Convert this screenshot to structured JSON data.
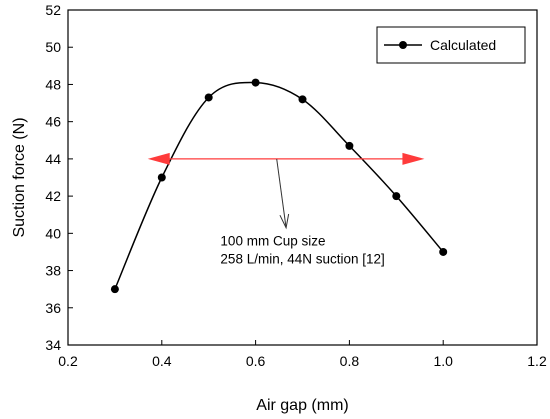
{
  "chart_data": {
    "type": "line",
    "xlabel": "Air gap (mm)",
    "ylabel": "Suction force (N)",
    "xlim": [
      0.2,
      1.2
    ],
    "ylim": [
      34,
      52
    ],
    "xticks": [
      0.2,
      0.4,
      0.6,
      0.8,
      1.0,
      1.2
    ],
    "xtick_labels": [
      "0.2",
      "0.4",
      "0.6",
      "0.8",
      "1.0",
      "1.2"
    ],
    "yticks": [
      34,
      36,
      38,
      40,
      42,
      44,
      46,
      48,
      50,
      52
    ],
    "ytick_labels": [
      "34",
      "36",
      "38",
      "40",
      "42",
      "44",
      "46",
      "48",
      "50",
      "52"
    ],
    "grid": false,
    "legend_position": "top-right",
    "series": [
      {
        "name": "Calculated",
        "x": [
          0.3,
          0.4,
          0.5,
          0.6,
          0.7,
          0.8,
          0.9,
          1.0
        ],
        "y": [
          37.0,
          43.0,
          47.3,
          48.1,
          47.2,
          44.7,
          42.0,
          39.0
        ],
        "color": "#000000"
      }
    ],
    "annotations": {
      "range_arrow": {
        "x_start": 0.37,
        "x_end": 0.96,
        "y": 44.0,
        "color": "#ff3b3b"
      },
      "pointer_arrow": {
        "x_start": 0.645,
        "y_start": 44.0,
        "x_end": 0.665,
        "y_end": 40.3
      },
      "text_lines": [
        "100 mm Cup size",
        "258 L/min, 44N suction [12]"
      ],
      "text_anchor": {
        "x": 0.525,
        "y": 39.35
      }
    }
  }
}
